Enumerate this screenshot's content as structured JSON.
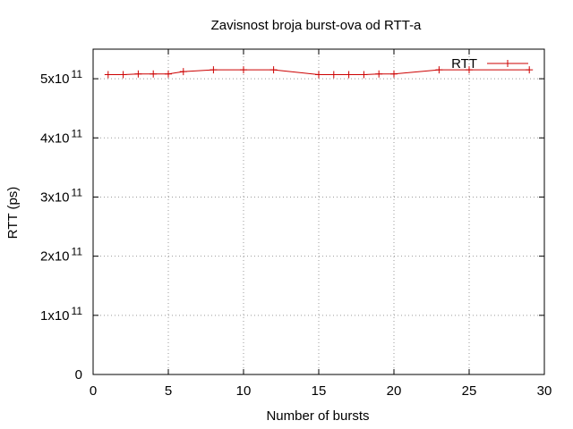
{
  "chart_data": {
    "type": "line",
    "title": "Zavisnost broja burst-ova od RTT-a",
    "xlabel": "Number of bursts",
    "ylabel": "RTT (ps)",
    "xlim": [
      0,
      30
    ],
    "ylim": [
      0,
      550000000000
    ],
    "x_ticks": [
      {
        "value": 0,
        "label": "0"
      },
      {
        "value": 5,
        "label": "5"
      },
      {
        "value": 10,
        "label": "10"
      },
      {
        "value": 15,
        "label": "15"
      },
      {
        "value": 20,
        "label": "20"
      },
      {
        "value": 25,
        "label": "25"
      },
      {
        "value": 30,
        "label": "30"
      }
    ],
    "y_ticks": [
      {
        "value": 0,
        "mantissa": "0",
        "exponent": ""
      },
      {
        "value": 100000000000,
        "mantissa": "1x10",
        "exponent": "11"
      },
      {
        "value": 200000000000,
        "mantissa": "2x10",
        "exponent": "11"
      },
      {
        "value": 300000000000,
        "mantissa": "3x10",
        "exponent": "11"
      },
      {
        "value": 400000000000,
        "mantissa": "4x10",
        "exponent": "11"
      },
      {
        "value": 500000000000,
        "mantissa": "5x10",
        "exponent": "11"
      }
    ],
    "grid": true,
    "legend_position": "top-right",
    "series": [
      {
        "name": "RTT",
        "color": "#cc0000",
        "marker": "plus",
        "x": [
          1,
          2,
          3,
          4,
          5,
          6,
          8,
          10,
          12,
          15,
          16,
          17,
          18,
          19,
          20,
          23,
          25,
          29
        ],
        "y": [
          507000000000,
          507000000000,
          508000000000,
          508000000000,
          508000000000,
          512000000000,
          515000000000,
          515000000000,
          515000000000,
          507000000000,
          507000000000,
          507000000000,
          507000000000,
          508000000000,
          508000000000,
          515000000000,
          515000000000,
          515000000000
        ]
      }
    ]
  }
}
